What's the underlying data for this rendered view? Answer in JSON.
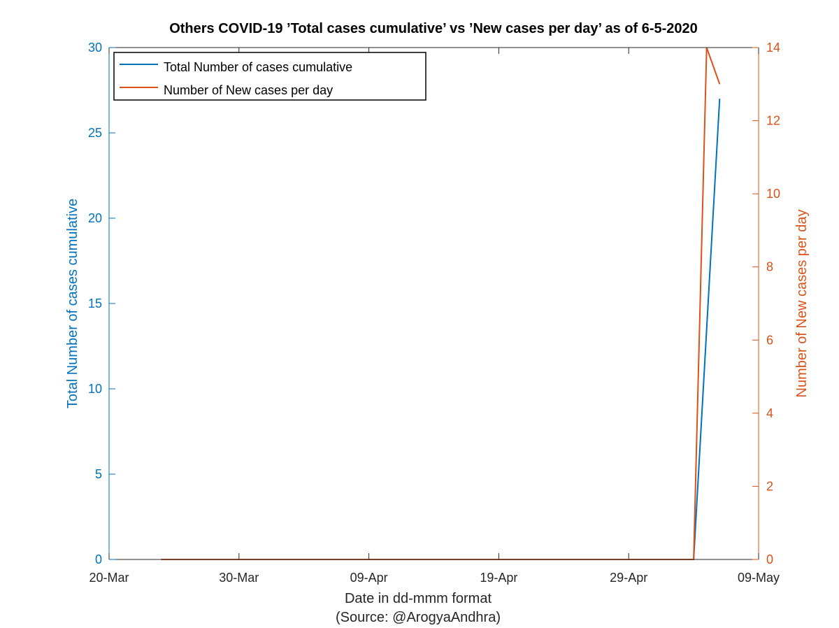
{
  "colors": {
    "left": "#0072BD",
    "right": "#D95319",
    "axis": "#262626",
    "legend_border": "#000000"
  },
  "chart_data": {
    "type": "line",
    "title": "Others COVID-19 'Total cases cumulative' vs 'New cases per day' as of 6-5-2020",
    "xlabel": "Date in dd-mmm format",
    "xlabel2": "(Source: @ArogyaAndhra)",
    "ylabel_left": "Total Number of cases cumulative",
    "ylabel_right": "Number of New cases per day",
    "xlim": [
      "2020-03-20",
      "2020-05-09"
    ],
    "xticks": [
      {
        "date": "2020-03-20",
        "label": "20-Mar"
      },
      {
        "date": "2020-03-30",
        "label": "30-Mar"
      },
      {
        "date": "2020-04-09",
        "label": "09-Apr"
      },
      {
        "date": "2020-04-19",
        "label": "19-Apr"
      },
      {
        "date": "2020-04-29",
        "label": "29-Apr"
      },
      {
        "date": "2020-05-09",
        "label": "09-May"
      }
    ],
    "ylim_left": [
      0,
      30
    ],
    "yticks_left": [
      "0",
      "5",
      "10",
      "15",
      "20",
      "25",
      "30"
    ],
    "ylim_right": [
      0,
      14
    ],
    "yticks_right": [
      "0",
      "2",
      "4",
      "6",
      "8",
      "10",
      "12",
      "14"
    ],
    "grid": false,
    "legend_position": "top-left",
    "series": [
      {
        "name": "Total Number of cases cumulative",
        "axis": "left",
        "points": [
          {
            "x": "2020-05-04",
            "y": 0
          },
          {
            "x": "2020-05-06",
            "y": 27
          }
        ]
      },
      {
        "name": "Number of New cases per day",
        "axis": "right",
        "points": [
          {
            "x": "2020-03-24",
            "y": 0
          },
          {
            "x": "2020-05-04",
            "y": 0
          },
          {
            "x": "2020-05-05",
            "y": 14
          },
          {
            "x": "2020-05-06",
            "y": 13
          }
        ]
      }
    ]
  }
}
